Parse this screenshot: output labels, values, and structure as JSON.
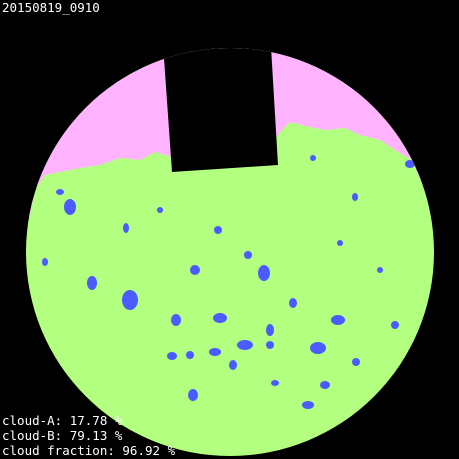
{
  "timestamp": "20150819_0910",
  "stats": [
    "cloud-A: 17.78 %",
    "cloud-B: 79.13 %",
    "cloud fraction: 96.92 %"
  ]
}
